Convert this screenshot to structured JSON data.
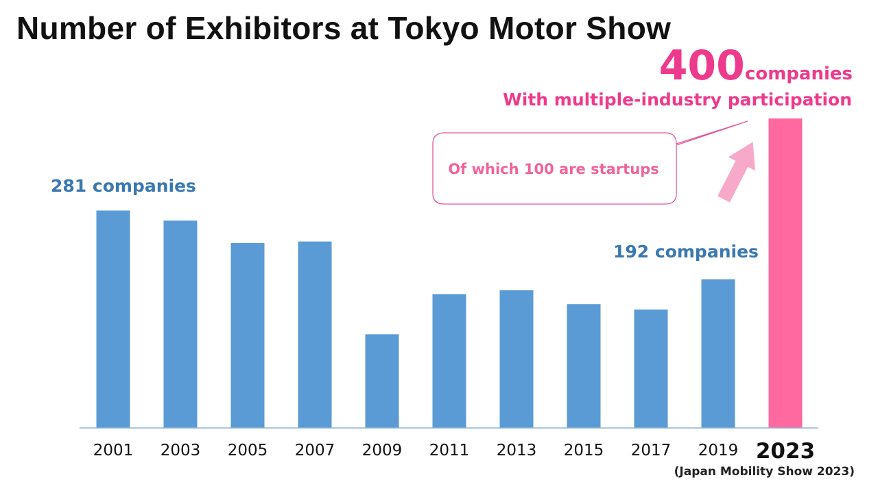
{
  "chart_data": {
    "type": "bar",
    "title": "Number of Exhibitors at Tokyo Motor Show",
    "categories": [
      "2001",
      "2003",
      "2005",
      "2007",
      "2009",
      "2011",
      "2013",
      "2015",
      "2017",
      "2019",
      "2023"
    ],
    "values": [
      281,
      268,
      239,
      241,
      121,
      173,
      178,
      160,
      153,
      192,
      400
    ],
    "value_axis": {
      "min": 0,
      "max": 400,
      "visible": false
    },
    "xlabel": "",
    "ylabel": "",
    "grid": false,
    "highlight_index": 10,
    "colors": {
      "bar": "#5b9bd5",
      "highlight_bar": "#ff69a0",
      "accent_blue": "#3a78b0",
      "accent_pink": "#ee3a8c",
      "callout_pink": "#f0639c"
    },
    "annotations": {
      "first": "281 companies",
      "last_before": "192 companies",
      "highlight_number": "400",
      "highlight_unit": "companies",
      "highlight_subtitle": "With multiple-industry participation",
      "callout": "Of which 100 are startups",
      "highlight_note": "(Japan Mobility Show 2023)"
    }
  }
}
